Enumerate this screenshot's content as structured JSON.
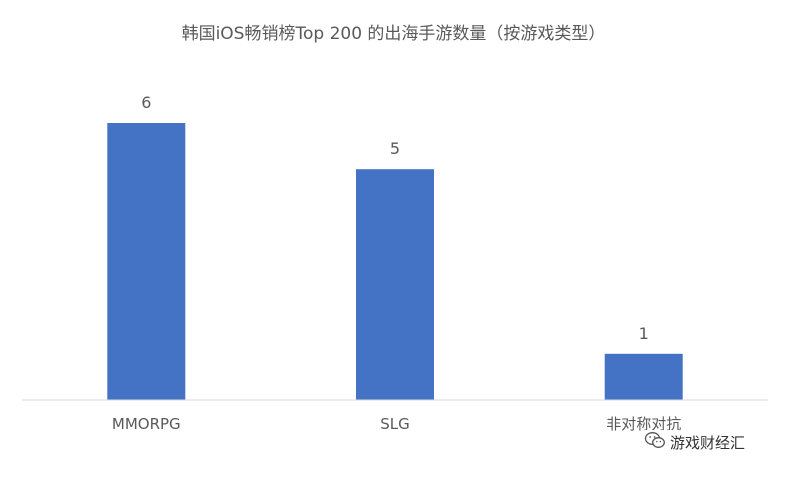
{
  "chart_data": {
    "type": "bar",
    "title": "韩国iOS畅销榜Top 200 的出海手游数量（按游戏类型）",
    "categories": [
      "MMORPG",
      "SLG",
      "非对称对抗"
    ],
    "values": [
      6,
      5,
      1
    ],
    "data_labels": [
      "6",
      "5",
      "1"
    ],
    "xlabel": "",
    "ylabel": "",
    "ylim": [
      0,
      6
    ],
    "grid": false,
    "legend": "none",
    "bar_color": "#4472C4",
    "axis_color": "#D9D9D9",
    "text_color": "#595959"
  },
  "watermark": {
    "icon": "wechat-icon",
    "text": "游戏财经汇"
  }
}
